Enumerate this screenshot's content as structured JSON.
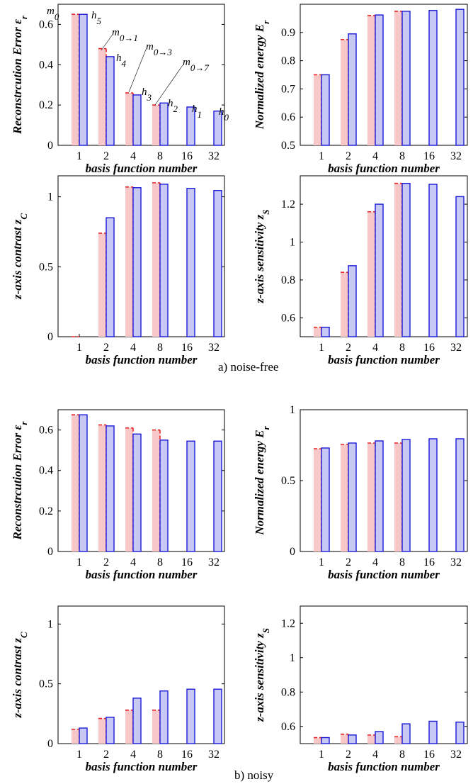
{
  "captions": {
    "a": "a) noise-free",
    "b": "b) noisy"
  },
  "colors": {
    "red_fill": "#f8c8c8",
    "red_edge": "#e8262a",
    "blue_fill": "#c8c8f4",
    "blue_edge": "#1a1ad6",
    "axis": "#000000"
  },
  "chart_data": [
    {
      "id": "a_err",
      "type": "bar",
      "categories": [
        "1",
        "2",
        "4",
        "8",
        "16",
        "32"
      ],
      "xlabel": "basis function number",
      "ylabel": "Reconstrcution Error ε_r",
      "ylim": [
        0,
        0.7
      ],
      "yticks": [
        0,
        0.2,
        0.4,
        0.6
      ],
      "ytick_labels": [
        "0",
        "0.2",
        "0.4",
        "0.6"
      ],
      "series": [
        {
          "values": [
            0.65,
            0.48,
            0.26,
            0.2,
            null,
            null
          ]
        },
        {
          "values": [
            0.65,
            0.44,
            0.25,
            0.21,
            0.19,
            0.17
          ]
        }
      ],
      "annotations": [
        "m_0",
        "h_5",
        "m_{0→1}",
        "h_4",
        "m_{0→3}",
        "h_3",
        "m_{0→7}",
        "h_2",
        "h_1",
        "h_0"
      ]
    },
    {
      "id": "a_energy",
      "type": "bar",
      "categories": [
        "1",
        "2",
        "4",
        "8",
        "16",
        "32"
      ],
      "xlabel": "basis function number",
      "ylabel": "Normalized energy E_r",
      "ylim": [
        0.5,
        1.0
      ],
      "yticks": [
        0.5,
        0.6,
        0.7,
        0.8,
        0.9
      ],
      "ytick_labels": [
        "0.5",
        "0.6",
        "0.7",
        "0.8",
        "0.9"
      ],
      "series": [
        {
          "values": [
            0.75,
            0.875,
            0.96,
            0.975,
            null,
            null
          ]
        },
        {
          "values": [
            0.75,
            0.895,
            0.962,
            0.975,
            0.978,
            0.982
          ]
        }
      ]
    },
    {
      "id": "a_contrast",
      "type": "bar",
      "categories": [
        "1",
        "2",
        "4",
        "8",
        "16",
        "32"
      ],
      "xlabel": "basis function number",
      "ylabel": "z-axis contrast z_C",
      "ylim": [
        0,
        1.15
      ],
      "yticks": [
        0,
        0.5,
        1
      ],
      "ytick_labels": [
        "0",
        "0.5",
        "1"
      ],
      "series": [
        {
          "values": [
            0.0,
            0.74,
            1.07,
            1.1,
            null,
            null
          ]
        },
        {
          "values": [
            0.0,
            0.85,
            1.065,
            1.09,
            1.06,
            1.045
          ]
        }
      ]
    },
    {
      "id": "a_sens",
      "type": "bar",
      "categories": [
        "1",
        "2",
        "4",
        "8",
        "16",
        "32"
      ],
      "xlabel": "basis function number",
      "ylabel": "z-axis sensitivity z_S",
      "ylim": [
        0.5,
        1.35
      ],
      "yticks": [
        0.6,
        0.8,
        1,
        1.2
      ],
      "ytick_labels": [
        "0.6",
        "0.8",
        "1",
        "1.2"
      ],
      "series": [
        {
          "values": [
            0.55,
            0.84,
            1.16,
            1.31,
            null,
            null
          ]
        },
        {
          "values": [
            0.55,
            0.875,
            1.2,
            1.31,
            1.305,
            1.24
          ]
        }
      ]
    },
    {
      "id": "b_err",
      "type": "bar",
      "categories": [
        "1",
        "2",
        "4",
        "8",
        "16",
        "32"
      ],
      "xlabel": "basis function number",
      "ylabel": "Reconstrcution Error ε_r",
      "ylim": [
        0,
        0.7
      ],
      "yticks": [
        0,
        0.2,
        0.4,
        0.6
      ],
      "ytick_labels": [
        "0",
        "0.2",
        "0.4",
        "0.6"
      ],
      "series": [
        {
          "values": [
            0.675,
            0.625,
            0.61,
            0.6,
            null,
            null
          ]
        },
        {
          "values": [
            0.675,
            0.62,
            0.58,
            0.55,
            0.545,
            0.545
          ]
        }
      ]
    },
    {
      "id": "b_energy",
      "type": "bar",
      "categories": [
        "1",
        "2",
        "4",
        "8",
        "16",
        "32"
      ],
      "xlabel": "basis function number",
      "ylabel": "Normalized energy E_r",
      "ylim": [
        0,
        1.0
      ],
      "yticks": [
        0,
        0.5,
        1
      ],
      "ytick_labels": [
        "0",
        "0.5",
        "1"
      ],
      "series": [
        {
          "values": [
            0.725,
            0.755,
            0.765,
            0.765,
            null,
            null
          ]
        },
        {
          "values": [
            0.73,
            0.765,
            0.78,
            0.79,
            0.795,
            0.795
          ]
        }
      ]
    },
    {
      "id": "b_contrast",
      "type": "bar",
      "categories": [
        "1",
        "2",
        "4",
        "8",
        "16",
        "32"
      ],
      "xlabel": "basis function number",
      "ylabel": "z-axis contrast z_C",
      "ylim": [
        0,
        1.15
      ],
      "yticks": [
        0,
        0.5,
        1
      ],
      "ytick_labels": [
        "0",
        "0.5",
        "1"
      ],
      "series": [
        {
          "values": [
            0.12,
            0.21,
            0.28,
            0.28,
            null,
            null
          ]
        },
        {
          "values": [
            0.13,
            0.22,
            0.38,
            0.44,
            0.455,
            0.455
          ]
        }
      ]
    },
    {
      "id": "b_sens",
      "type": "bar",
      "categories": [
        "1",
        "2",
        "4",
        "8",
        "16",
        "32"
      ],
      "xlabel": "basis function number",
      "ylabel": "z-axis sensitivity z_S",
      "ylim": [
        0.5,
        1.3
      ],
      "yticks": [
        0.6,
        0.8,
        1,
        1.2
      ],
      "ytick_labels": [
        "0.6",
        "0.8",
        "1",
        "1.2"
      ],
      "series": [
        {
          "values": [
            0.535,
            0.555,
            0.55,
            0.54,
            null,
            null
          ]
        },
        {
          "values": [
            0.535,
            0.55,
            0.57,
            0.615,
            0.63,
            0.625
          ]
        }
      ]
    }
  ]
}
